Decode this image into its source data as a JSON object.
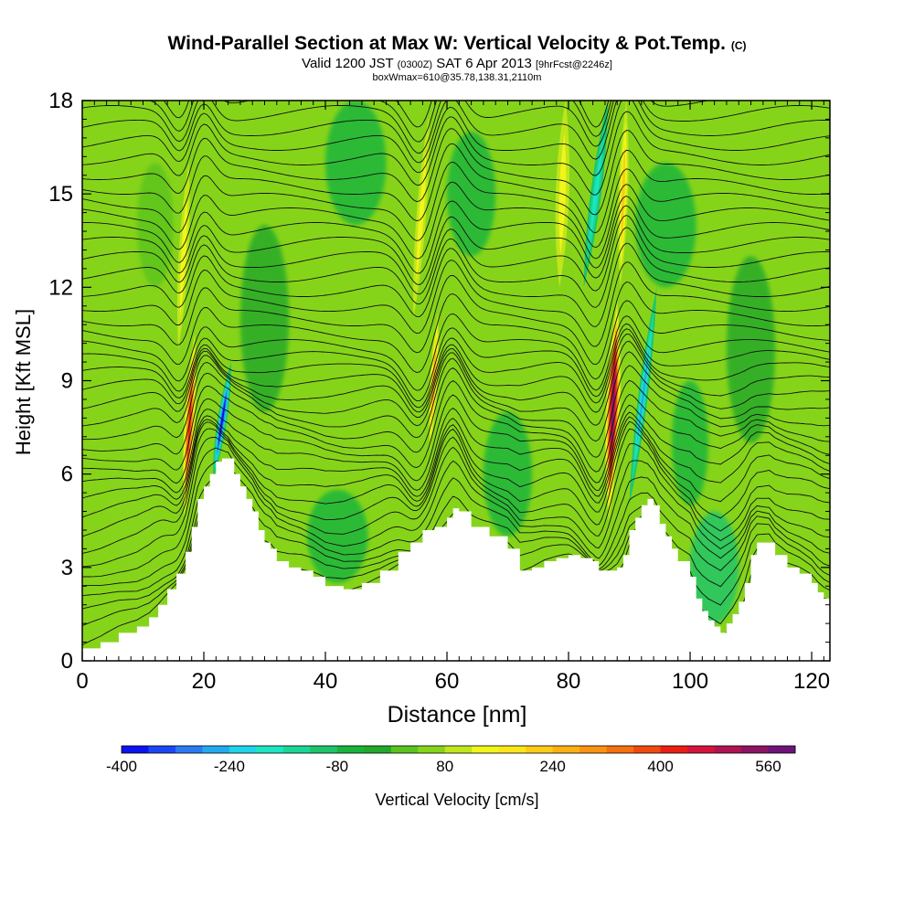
{
  "title": {
    "main": "Wind-Parallel Section at Max W: Vertical Velocity & Pot.Temp.",
    "copyright": "(C)",
    "valid_prefix": "Valid 1200 JST",
    "valid_utc": "(0300Z)",
    "valid_date": "SAT 6 Apr 2013",
    "forecast": "[9hrFcst@2246z]",
    "box_info": "boxWmax=610@35.78,138.31,2110m"
  },
  "chart_data": {
    "type": "heatmap",
    "xlabel": "Distance [nm]",
    "ylabel": "Height [Kft MSL]",
    "xlim": [
      0,
      123
    ],
    "ylim": [
      0,
      18
    ],
    "x_ticks": [
      0,
      20,
      40,
      60,
      80,
      100,
      120
    ],
    "y_ticks": [
      0,
      3,
      6,
      9,
      12,
      15,
      18
    ],
    "background_color": "#86d41a",
    "colorbar": {
      "label": "Vertical Velocity [cm/s]",
      "tick_labels": [
        -400,
        -240,
        -80,
        80,
        240,
        400,
        560
      ],
      "min": -400,
      "max": 600,
      "colors": [
        "#0a14f0",
        "#1a46f5",
        "#2a7af2",
        "#22aaf0",
        "#1fd4e8",
        "#1ae6c2",
        "#1ad696",
        "#1dc46a",
        "#18b43c",
        "#22a82a",
        "#5ac31e",
        "#86d41a",
        "#c0e61a",
        "#f0f51a",
        "#fae61a",
        "#fccc14",
        "#fcb014",
        "#fa9212",
        "#f5700f",
        "#f04a0f",
        "#eb1e14",
        "#d4143c",
        "#b01450",
        "#8c1464",
        "#6e1478"
      ]
    },
    "terrain_height": [
      [
        0,
        0.4
      ],
      [
        3,
        0.6
      ],
      [
        6,
        0.9
      ],
      [
        9,
        1.1
      ],
      [
        11,
        1.4
      ],
      [
        12.5,
        1.8
      ],
      [
        14,
        2.3
      ],
      [
        15.5,
        2.8
      ],
      [
        17,
        3.5
      ],
      [
        18,
        4.3
      ],
      [
        19,
        5.2
      ],
      [
        20,
        5.6
      ],
      [
        21,
        6.0
      ],
      [
        22,
        6.4
      ],
      [
        23,
        6.5
      ],
      [
        24,
        6.5
      ],
      [
        25,
        6.0
      ],
      [
        26,
        5.6
      ],
      [
        27,
        5.2
      ],
      [
        28,
        4.8
      ],
      [
        29,
        4.2
      ],
      [
        30,
        3.8
      ],
      [
        31,
        3.6
      ],
      [
        32,
        3.2
      ],
      [
        34,
        3.0
      ],
      [
        36,
        2.9
      ],
      [
        38,
        2.7
      ],
      [
        40,
        2.4
      ],
      [
        43,
        2.3
      ],
      [
        46,
        2.5
      ],
      [
        49,
        2.9
      ],
      [
        52,
        3.5
      ],
      [
        54,
        3.8
      ],
      [
        56,
        4.2
      ],
      [
        58,
        4.3
      ],
      [
        60,
        4.6
      ],
      [
        61,
        4.9
      ],
      [
        62,
        4.8
      ],
      [
        64,
        4.3
      ],
      [
        67,
        4.0
      ],
      [
        70,
        3.6
      ],
      [
        72,
        2.9
      ],
      [
        74,
        3.0
      ],
      [
        76,
        3.2
      ],
      [
        78,
        3.3
      ],
      [
        80,
        3.4
      ],
      [
        82,
        3.3
      ],
      [
        84,
        3.2
      ],
      [
        85,
        2.9
      ],
      [
        87,
        2.9
      ],
      [
        88,
        3.0
      ],
      [
        89,
        3.4
      ],
      [
        90,
        4.2
      ],
      [
        91,
        4.6
      ],
      [
        92,
        5.0
      ],
      [
        93,
        5.2
      ],
      [
        94,
        5.0
      ],
      [
        95,
        4.4
      ],
      [
        96,
        4.0
      ],
      [
        97,
        3.6
      ],
      [
        98,
        3.2
      ],
      [
        100,
        2.7
      ],
      [
        101,
        2.0
      ],
      [
        102,
        1.6
      ],
      [
        103,
        1.3
      ],
      [
        104,
        1.1
      ],
      [
        105,
        0.9
      ],
      [
        106,
        1.2
      ],
      [
        107,
        1.5
      ],
      [
        108,
        1.9
      ],
      [
        109,
        2.5
      ],
      [
        110,
        3.4
      ],
      [
        111,
        3.8
      ],
      [
        113,
        3.8
      ],
      [
        114,
        3.4
      ],
      [
        116,
        3.0
      ],
      [
        118,
        2.8
      ],
      [
        120,
        2.5
      ],
      [
        121,
        2.2
      ],
      [
        122,
        2.0
      ],
      [
        123,
        1.9
      ]
    ],
    "features": [
      {
        "kind": "updraft",
        "value": 440,
        "base": [
          16.8,
          4.6
        ],
        "top": [
          18.5,
          10.5
        ],
        "width": 1.8
      },
      {
        "kind": "downdraft",
        "value": -400,
        "base": [
          21.5,
          5.8
        ],
        "top": [
          24.5,
          9.6
        ],
        "width": 1.6
      },
      {
        "kind": "weak-up",
        "value": 120,
        "base": [
          15.8,
          10.0
        ],
        "top": [
          17.5,
          16.0
        ],
        "width": 1.6
      },
      {
        "kind": "updraft",
        "value": 300,
        "base": [
          57.2,
          6.8
        ],
        "top": [
          58.5,
          11.2
        ],
        "width": 1.3
      },
      {
        "kind": "weak-up",
        "value": 120,
        "base": [
          54.5,
          11.0
        ],
        "top": [
          57.0,
          17.5
        ],
        "width": 1.6
      },
      {
        "kind": "weak-up",
        "value": 140,
        "base": [
          78.5,
          12.0
        ],
        "top": [
          79.5,
          18.0
        ],
        "width": 2.2
      },
      {
        "kind": "downdraft",
        "value": -220,
        "base": [
          82.5,
          12.0
        ],
        "top": [
          86.5,
          18.0
        ],
        "width": 1.8
      },
      {
        "kind": "updraft",
        "value": 600,
        "base": [
          86.6,
          4.5
        ],
        "top": [
          88.0,
          11.6
        ],
        "width": 2.4
      },
      {
        "kind": "downdraft",
        "value": -280,
        "base": [
          90.0,
          5.0
        ],
        "top": [
          94.5,
          12.0
        ],
        "width": 1.6
      },
      {
        "kind": "updraft",
        "value": 240,
        "base": [
          88.5,
          12.0
        ],
        "top": [
          89.5,
          18.0
        ],
        "width": 1.6
      }
    ],
    "isentropes": {
      "theta_base": 30,
      "theta_step": 2,
      "count": 40,
      "tilt": [
        {
          "x": 18,
          "slope": 1.6,
          "width": 2.5
        },
        {
          "x": 58,
          "slope": 2.2,
          "width": 3.2
        },
        {
          "x": 87,
          "slope": 2.4,
          "width": 3.0
        }
      ]
    }
  }
}
